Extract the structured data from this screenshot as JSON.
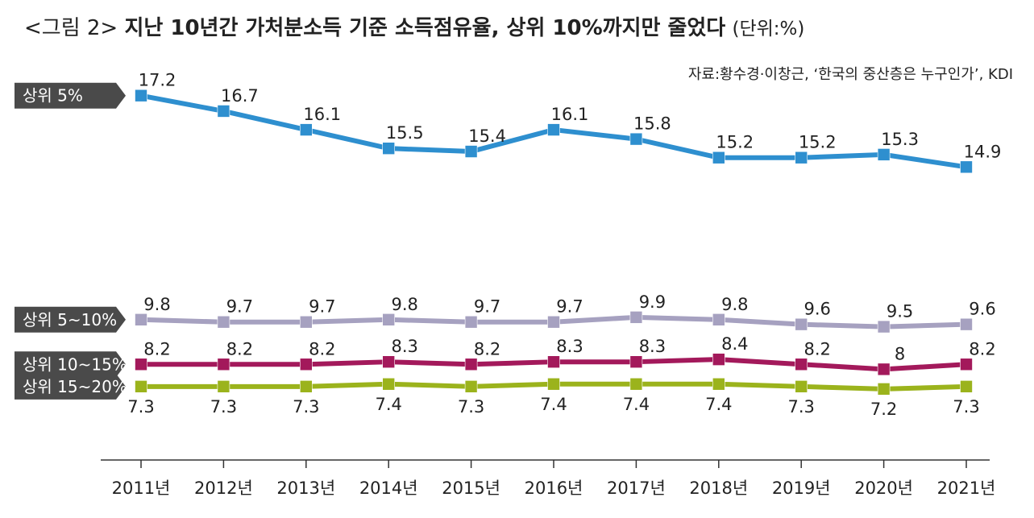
{
  "title": {
    "prefix": "<그림 2>",
    "main": "지난 10년간 가처분소득 기준 소득점유율, 상위 10%까지만 줄었다",
    "unit": "(단위:%)"
  },
  "source": "자료:황수경·이창근, ‘한국의 중산층은 누구인가’, KDI",
  "chart_data": {
    "type": "line",
    "categories": [
      "2011년",
      "2012년",
      "2013년",
      "2014년",
      "2015년",
      "2016년",
      "2017년",
      "2018년",
      "2019년",
      "2020년",
      "2021년"
    ],
    "series": [
      {
        "name": "상위 5%",
        "color": "#2e8fcf",
        "values": [
          17.2,
          16.7,
          16.1,
          15.5,
          15.4,
          16.1,
          15.8,
          15.2,
          15.2,
          15.3,
          14.9
        ],
        "labels": [
          "17.2",
          "16.7",
          "16.1",
          "15.5",
          "15.4",
          "16.1",
          "15.8",
          "15.2",
          "15.2",
          "15.3",
          "14.9"
        ],
        "label_pos": "above"
      },
      {
        "name": "상위 5~10%",
        "color": "#a6a1c0",
        "values": [
          9.8,
          9.7,
          9.7,
          9.8,
          9.7,
          9.7,
          9.9,
          9.8,
          9.6,
          9.5,
          9.6
        ],
        "labels": [
          "9.8",
          "9.7",
          "9.7",
          "9.8",
          "9.7",
          "9.7",
          "9.9",
          "9.8",
          "9.6",
          "9.5",
          "9.6"
        ],
        "label_pos": "above"
      },
      {
        "name": "상위 10~15%",
        "color": "#a3195b",
        "values": [
          8.2,
          8.2,
          8.2,
          8.3,
          8.2,
          8.3,
          8.3,
          8.4,
          8.2,
          8.0,
          8.2
        ],
        "labels": [
          "8.2",
          "8.2",
          "8.2",
          "8.3",
          "8.2",
          "8.3",
          "8.3",
          "8.4",
          "8.2",
          "8",
          "8.2"
        ],
        "label_pos": "above"
      },
      {
        "name": "상위 15~20%",
        "color": "#9bb31c",
        "values": [
          7.3,
          7.3,
          7.3,
          7.4,
          7.3,
          7.4,
          7.4,
          7.4,
          7.3,
          7.2,
          7.3
        ],
        "labels": [
          "7.3",
          "7.3",
          "7.3",
          "7.4",
          "7.3",
          "7.4",
          "7.4",
          "7.4",
          "7.3",
          "7.2",
          "7.3"
        ],
        "label_pos": "below"
      }
    ],
    "xlabel": "",
    "ylabel": "",
    "grid": false,
    "legend": "left (series labels in dark tags)"
  }
}
